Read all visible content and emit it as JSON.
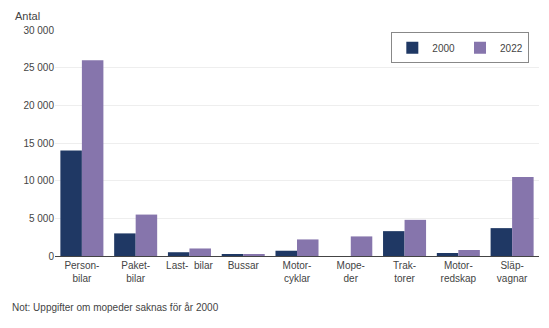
{
  "chart_data": {
    "type": "bar",
    "categories": [
      "Person-\nbilar",
      "Paket-\nbilar",
      "Last-  bilar",
      "Bussar",
      "Motor-\ncyklar",
      "Mope-\nder",
      "Trak-\ntorer",
      "Motor-\nredskap",
      "Släp-\nvagnar"
    ],
    "series": [
      {
        "name": "2000",
        "color": "#1F3864",
        "values": [
          14000,
          3000,
          500,
          200,
          700,
          null,
          3300,
          400,
          3700
        ]
      },
      {
        "name": "2022",
        "color": "#8675AC",
        "values": [
          26000,
          5500,
          1000,
          250,
          2200,
          2600,
          4800,
          800,
          10500
        ]
      }
    ],
    "ylim": [
      0,
      30000
    ],
    "yticks": [
      0,
      {
        "value": 5000,
        "label": "5 000"
      },
      {
        "value": 10000,
        "label": "10 000"
      },
      {
        "value": 15000,
        "label": "15 000"
      },
      {
        "value": 20000,
        "label": "20 000"
      },
      {
        "value": 25000,
        "label": "25 000"
      },
      {
        "value": 30000,
        "label": "30 000"
      }
    ],
    "ylabel": "Antal",
    "grid": true,
    "legend": "upper right",
    "annotations": [
      "Not: Uppgifter om mopeder saknas för år 2000"
    ]
  }
}
